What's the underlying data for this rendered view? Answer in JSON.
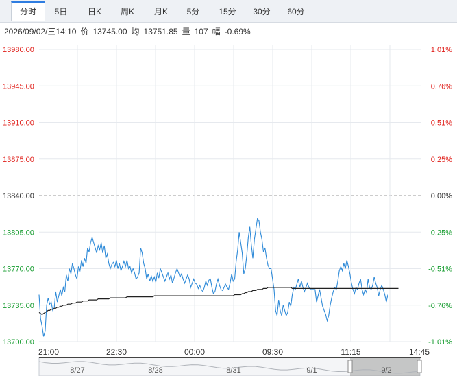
{
  "tabs": [
    "分时",
    "5日",
    "日K",
    "周K",
    "月K",
    "5分",
    "15分",
    "30分",
    "60分"
  ],
  "active_tab": "分时",
  "info": {
    "datetime": "2026/09/02/三14:10",
    "price_label": "价",
    "price": "13745.00",
    "avg_label": "均",
    "avg": "13751.85",
    "volume_label": "量",
    "volume": "107",
    "change_label": "幅",
    "change": "-0.69%"
  },
  "colors": {
    "up": "#e0201b",
    "down": "#169c2f",
    "price_line": "#2e8ad8",
    "avg_line": "#222222",
    "grid": "#e6e9ee",
    "baseline": "#999999"
  },
  "chart_data": {
    "type": "line",
    "ylim": [
      13700,
      13980
    ],
    "prev_close": 13840,
    "y_ticks": [
      "13980.00",
      "13945.00",
      "13910.00",
      "13875.00",
      "13840.00",
      "13805.00",
      "13770.00",
      "13735.00",
      "13700.00"
    ],
    "pct_ticks": [
      "1.01%",
      "0.76%",
      "0.51%",
      "0.25%",
      "0.00%",
      "-0.25%",
      "-0.51%",
      "-0.76%",
      "-1.01%"
    ],
    "x_tick_labels": [
      "21:00",
      "22:30",
      "00:00",
      "09:30",
      "11:15",
      "14:45"
    ],
    "day_labels": [
      "8/27",
      "8/28",
      "8/31",
      "9/1",
      "9/2"
    ],
    "series": [
      {
        "values": [
          13745,
          13722,
          13715,
          13705,
          13710,
          13735,
          13742,
          13736,
          13738,
          13730,
          13732,
          13748,
          13738,
          13744,
          13750,
          13744,
          13752,
          13748,
          13764,
          13758,
          13770,
          13765,
          13775,
          13770,
          13764,
          13760,
          13772,
          13768,
          13778,
          13772,
          13780,
          13775,
          13790,
          13786,
          13795,
          13800,
          13795,
          13790,
          13785,
          13792,
          13788,
          13795,
          13785,
          13792,
          13780,
          13784,
          13775,
          13770,
          13774,
          13776,
          13772,
          13778,
          13770,
          13775,
          13768,
          13772,
          13777,
          13772,
          13778,
          13770,
          13772,
          13766,
          13770,
          13766,
          13760,
          13762,
          13766,
          13790,
          13785,
          13775,
          13770,
          13760,
          13765,
          13758,
          13763,
          13758,
          13762,
          13757,
          13766,
          13761,
          13770,
          13766,
          13762,
          13758,
          13762,
          13766,
          13760,
          13764,
          13756,
          13761,
          13766,
          13770,
          13766,
          13762,
          13765,
          13760,
          13756,
          13760,
          13764,
          13760,
          13752,
          13756,
          13760,
          13756,
          13755,
          13751,
          13754,
          13750,
          13748,
          13752,
          13758,
          13754,
          13759,
          13760,
          13752,
          13746,
          13748,
          13755,
          13760,
          13754,
          13750,
          13749,
          13752,
          13755,
          13752,
          13750,
          13756,
          13765,
          13758,
          13760,
          13777,
          13788,
          13805,
          13795,
          13785,
          13765,
          13770,
          13783,
          13800,
          13810,
          13793,
          13780,
          13798,
          13808,
          13818,
          13816,
          13805,
          13798,
          13786,
          13790,
          13780,
          13773,
          13770,
          13770,
          13760,
          13750,
          13730,
          13725,
          13740,
          13730,
          13725,
          13735,
          13730,
          13725,
          13728,
          13738,
          13734,
          13745,
          13752,
          13750,
          13755,
          13760,
          13752,
          13758,
          13752,
          13748,
          13752,
          13756,
          13752,
          13750,
          13750,
          13750,
          13750,
          13738,
          13744,
          13750,
          13742,
          13734,
          13730,
          13726,
          13720,
          13725,
          13735,
          13742,
          13748,
          13752,
          13750,
          13758,
          13768,
          13772,
          13768,
          13775,
          13770,
          13778,
          13772,
          13765,
          13756,
          13750,
          13746,
          13752,
          13750,
          13756,
          13760,
          13750,
          13745,
          13750,
          13747,
          13760,
          13752,
          13750,
          13754,
          13762,
          13756,
          13752,
          13744,
          13750,
          13754,
          13750,
          13745,
          13738,
          13745
        ]
      },
      {
        "values": [
          13728,
          13727,
          13726,
          13727,
          13728,
          13729,
          13730,
          13730,
          13731,
          13731,
          13732,
          13732,
          13733,
          13733,
          13734,
          13734,
          13735,
          13735,
          13735,
          13736,
          13736,
          13736,
          13737,
          13737,
          13737,
          13738,
          13738,
          13738,
          13738,
          13739,
          13739,
          13739,
          13739,
          13740,
          13740,
          13740,
          13740,
          13740,
          13740,
          13741,
          13741,
          13741,
          13741,
          13741,
          13741,
          13741,
          13741,
          13742,
          13742,
          13742,
          13742,
          13742,
          13742,
          13742,
          13742,
          13742,
          13742,
          13742,
          13743,
          13743,
          13743,
          13743,
          13743,
          13743,
          13743,
          13743,
          13743,
          13743,
          13743,
          13743,
          13743,
          13743,
          13743,
          13743,
          13743,
          13743,
          13744,
          13744,
          13744,
          13744,
          13744,
          13744,
          13744,
          13744,
          13744,
          13744,
          13744,
          13744,
          13744,
          13744,
          13744,
          13744,
          13744,
          13744,
          13744,
          13744,
          13744,
          13744,
          13744,
          13744,
          13744,
          13744,
          13744,
          13744,
          13744,
          13744,
          13744,
          13744,
          13744,
          13744,
          13744,
          13744,
          13744,
          13744,
          13744,
          13744,
          13744,
          13744,
          13744,
          13744,
          13744,
          13744,
          13744,
          13744,
          13744,
          13744,
          13744,
          13744,
          13744,
          13745,
          13745,
          13745,
          13745,
          13745,
          13746,
          13746,
          13747,
          13747,
          13748,
          13748,
          13748,
          13749,
          13749,
          13749,
          13750,
          13750,
          13750,
          13750,
          13751,
          13751,
          13751,
          13752,
          13752,
          13752,
          13752,
          13752,
          13752,
          13752,
          13752,
          13752,
          13752,
          13752,
          13752,
          13752,
          13752,
          13752,
          13752,
          13751,
          13751,
          13751,
          13751,
          13751,
          13751,
          13751,
          13751,
          13751,
          13751,
          13751,
          13751,
          13751,
          13751,
          13751,
          13751,
          13751,
          13751,
          13751,
          13751,
          13751,
          13751,
          13751,
          13751,
          13751,
          13751,
          13751,
          13751,
          13751,
          13751,
          13751,
          13751,
          13751,
          13751,
          13751,
          13751,
          13751,
          13751,
          13751,
          13751,
          13751,
          13751,
          13751,
          13751,
          13751,
          13751,
          13751,
          13751,
          13751,
          13751,
          13751,
          13751,
          13751,
          13751,
          13751,
          13751,
          13751,
          13751,
          13751,
          13751,
          13751,
          13751,
          13751,
          13751,
          13751,
          13751,
          13751,
          13751,
          13751,
          13751,
          13751
        ]
      }
    ]
  }
}
